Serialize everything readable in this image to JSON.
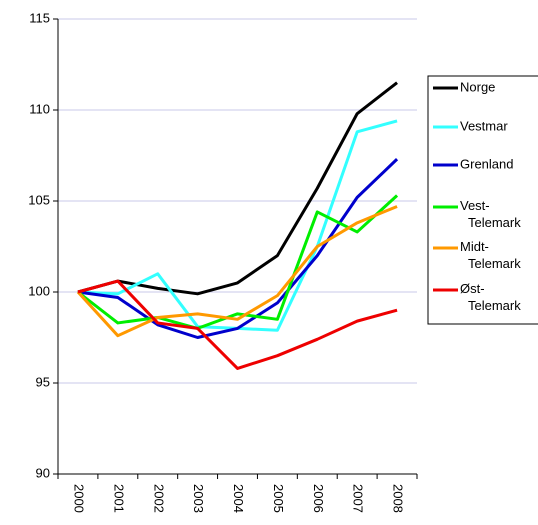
{
  "chart_data": {
    "type": "line",
    "categories": [
      "2000",
      "2001",
      "2002",
      "2003",
      "2004",
      "2005",
      "2006",
      "2007",
      "2008"
    ],
    "series": [
      {
        "name": "Norge",
        "color": "#000000",
        "values": [
          100,
          100.6,
          100.2,
          99.9,
          100.5,
          102,
          105.7,
          109.8,
          111.5
        ]
      },
      {
        "name": "Vestmar",
        "color": "#33ffff",
        "values": [
          100,
          99.9,
          101,
          98.1,
          98,
          97.9,
          102.5,
          108.8,
          109.4
        ]
      },
      {
        "name": "Grenland",
        "color": "#0000cc",
        "values": [
          100,
          99.7,
          98.2,
          97.5,
          98,
          99.4,
          102,
          105.2,
          107.3
        ]
      },
      {
        "name": "Vest-Telemark",
        "color": "#00ee00",
        "values": [
          100,
          98.3,
          98.6,
          98,
          98.8,
          98.5,
          104.4,
          103.3,
          105.3
        ]
      },
      {
        "name": "Midt-Telemark",
        "color": "#ff9900",
        "values": [
          100,
          97.6,
          98.6,
          98.8,
          98.5,
          99.8,
          102.5,
          103.8,
          104.7
        ]
      },
      {
        "name": "Øst-Telemark",
        "color": "#ee0000",
        "values": [
          100,
          100.6,
          98.3,
          98,
          95.8,
          96.5,
          97.4,
          98.4,
          99
        ]
      }
    ],
    "ylim": [
      90,
      115
    ],
    "yticks": [
      90,
      95,
      100,
      105,
      110,
      115
    ],
    "grid": true,
    "legend": "right"
  }
}
